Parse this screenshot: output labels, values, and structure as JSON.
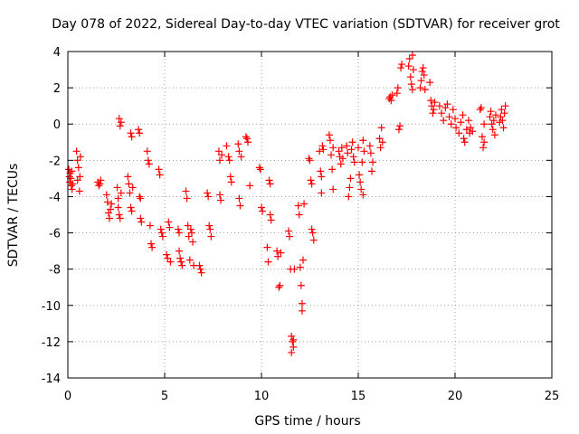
{
  "chart_data": {
    "type": "scatter",
    "title": "Day 078 of 2022, Sidereal Day-to-day VTEC variation (SDTVAR) for receiver grot",
    "xlabel": "GPS time / hours",
    "ylabel": "SDTVAR / TECUs",
    "xlim": [
      0,
      25
    ],
    "ylim": [
      -14,
      4
    ],
    "xticks": [
      0,
      5,
      10,
      15,
      20,
      25
    ],
    "yticks": [
      -14,
      -12,
      -10,
      -8,
      -6,
      -4,
      -2,
      0,
      2,
      4
    ],
    "grid": true,
    "marker": "+",
    "color": "#ff0000",
    "series": [
      {
        "name": "SDTVAR",
        "points": [
          [
            0.05,
            -2.5
          ],
          [
            0.08,
            -2.9
          ],
          [
            0.1,
            -3.2
          ],
          [
            0.12,
            -2.7
          ],
          [
            0.15,
            -3.0
          ],
          [
            0.18,
            -3.4
          ],
          [
            0.2,
            -2.6
          ],
          [
            0.22,
            -3.6
          ],
          [
            0.25,
            -3.3
          ],
          [
            0.45,
            -1.5
          ],
          [
            0.5,
            -2.0
          ],
          [
            0.5,
            -3.1
          ],
          [
            0.55,
            -2.4
          ],
          [
            0.6,
            -3.7
          ],
          [
            0.62,
            -2.9
          ],
          [
            0.65,
            -1.8
          ],
          [
            1.55,
            -3.2
          ],
          [
            1.6,
            -3.4
          ],
          [
            1.65,
            -3.3
          ],
          [
            1.7,
            -3.1
          ],
          [
            2.0,
            -3.9
          ],
          [
            2.05,
            -4.3
          ],
          [
            2.1,
            -4.9
          ],
          [
            2.15,
            -5.2
          ],
          [
            2.2,
            -4.7
          ],
          [
            2.25,
            -4.4
          ],
          [
            2.55,
            -3.5
          ],
          [
            2.6,
            -4.1
          ],
          [
            2.6,
            -4.6
          ],
          [
            2.65,
            -5.0
          ],
          [
            2.65,
            0.3
          ],
          [
            2.7,
            -0.1
          ],
          [
            2.7,
            -5.2
          ],
          [
            2.75,
            -3.8
          ],
          [
            2.75,
            0.1
          ],
          [
            3.1,
            -2.9
          ],
          [
            3.15,
            -3.3
          ],
          [
            3.2,
            -3.8
          ],
          [
            3.25,
            -4.6
          ],
          [
            3.25,
            -0.5
          ],
          [
            3.3,
            -0.7
          ],
          [
            3.3,
            -4.8
          ],
          [
            3.35,
            -3.5
          ],
          [
            3.65,
            -0.3
          ],
          [
            3.7,
            -0.5
          ],
          [
            3.7,
            -4.0
          ],
          [
            3.75,
            -4.1
          ],
          [
            3.75,
            -5.2
          ],
          [
            3.8,
            -5.4
          ],
          [
            4.1,
            -1.5
          ],
          [
            4.15,
            -2.0
          ],
          [
            4.2,
            -2.2
          ],
          [
            4.25,
            -5.6
          ],
          [
            4.3,
            -6.6
          ],
          [
            4.35,
            -6.8
          ],
          [
            4.7,
            -2.5
          ],
          [
            4.75,
            -2.8
          ],
          [
            4.8,
            -5.8
          ],
          [
            4.85,
            -6.0
          ],
          [
            4.9,
            -6.2
          ],
          [
            5.1,
            -7.2
          ],
          [
            5.15,
            -7.4
          ],
          [
            5.2,
            -5.4
          ],
          [
            5.25,
            -5.7
          ],
          [
            5.3,
            -7.6
          ],
          [
            5.7,
            -5.8
          ],
          [
            5.75,
            -6.0
          ],
          [
            5.75,
            -7.0
          ],
          [
            5.8,
            -7.4
          ],
          [
            5.85,
            -7.6
          ],
          [
            5.9,
            -7.8
          ],
          [
            6.1,
            -3.7
          ],
          [
            6.15,
            -4.1
          ],
          [
            6.2,
            -5.6
          ],
          [
            6.25,
            -6.2
          ],
          [
            6.3,
            -7.5
          ],
          [
            6.35,
            -5.8
          ],
          [
            6.4,
            -6.0
          ],
          [
            6.45,
            -6.5
          ],
          [
            6.5,
            -7.8
          ],
          [
            6.8,
            -7.8
          ],
          [
            6.85,
            -8.0
          ],
          [
            6.9,
            -8.2
          ],
          [
            7.2,
            -3.8
          ],
          [
            7.25,
            -4.0
          ],
          [
            7.3,
            -5.6
          ],
          [
            7.35,
            -5.8
          ],
          [
            7.4,
            -6.2
          ],
          [
            7.8,
            -1.5
          ],
          [
            7.85,
            -2.0
          ],
          [
            7.85,
            -3.9
          ],
          [
            7.9,
            -4.2
          ],
          [
            7.95,
            -1.7
          ],
          [
            8.2,
            -1.2
          ],
          [
            8.3,
            -1.8
          ],
          [
            8.35,
            -2.0
          ],
          [
            8.4,
            -2.9
          ],
          [
            8.45,
            -3.2
          ],
          [
            8.8,
            -1.1
          ],
          [
            8.85,
            -1.5
          ],
          [
            8.85,
            -4.1
          ],
          [
            8.9,
            -4.5
          ],
          [
            8.95,
            -1.8
          ],
          [
            9.2,
            -0.7
          ],
          [
            9.25,
            -0.8
          ],
          [
            9.3,
            -1.0
          ],
          [
            9.4,
            -3.4
          ],
          [
            9.9,
            -2.4
          ],
          [
            9.95,
            -2.5
          ],
          [
            10.0,
            -4.6
          ],
          [
            10.05,
            -4.8
          ],
          [
            10.3,
            -6.8
          ],
          [
            10.35,
            -7.6
          ],
          [
            10.4,
            -3.1
          ],
          [
            10.45,
            -3.3
          ],
          [
            10.45,
            -5.0
          ],
          [
            10.5,
            -5.3
          ],
          [
            10.8,
            -7.0
          ],
          [
            10.85,
            -7.3
          ],
          [
            10.9,
            -9.0
          ],
          [
            10.95,
            -8.9
          ],
          [
            11.0,
            -7.1
          ],
          [
            11.4,
            -5.9
          ],
          [
            11.45,
            -6.2
          ],
          [
            11.5,
            -8.0
          ],
          [
            11.55,
            -11.7
          ],
          [
            11.55,
            -12.6
          ],
          [
            11.6,
            -12.0
          ],
          [
            11.65,
            -12.3
          ],
          [
            11.65,
            -11.9
          ],
          [
            11.7,
            -8.0
          ],
          [
            11.9,
            -4.5
          ],
          [
            11.95,
            -5.0
          ],
          [
            12.0,
            -7.9
          ],
          [
            12.05,
            -8.9
          ],
          [
            12.1,
            -9.9
          ],
          [
            12.1,
            -10.3
          ],
          [
            12.15,
            -7.5
          ],
          [
            12.2,
            -4.4
          ],
          [
            12.45,
            -1.9
          ],
          [
            12.5,
            -2.0
          ],
          [
            12.55,
            -3.1
          ],
          [
            12.6,
            -3.3
          ],
          [
            12.6,
            -5.8
          ],
          [
            12.65,
            -6.0
          ],
          [
            12.7,
            -6.4
          ],
          [
            13.0,
            -1.5
          ],
          [
            13.05,
            -2.6
          ],
          [
            13.1,
            -2.9
          ],
          [
            13.1,
            -3.8
          ],
          [
            13.15,
            -1.2
          ],
          [
            13.2,
            -1.4
          ],
          [
            13.5,
            -0.6
          ],
          [
            13.55,
            -0.9
          ],
          [
            13.6,
            -1.7
          ],
          [
            13.65,
            -2.5
          ],
          [
            13.7,
            -3.6
          ],
          [
            13.7,
            -1.3
          ],
          [
            14.0,
            -1.5
          ],
          [
            14.05,
            -1.8
          ],
          [
            14.1,
            -2.2
          ],
          [
            14.15,
            -1.3
          ],
          [
            14.2,
            -1.9
          ],
          [
            14.4,
            -1.2
          ],
          [
            14.45,
            -1.6
          ],
          [
            14.5,
            -4.0
          ],
          [
            14.55,
            -3.5
          ],
          [
            14.6,
            -3.0
          ],
          [
            14.65,
            -1.4
          ],
          [
            14.7,
            -1.0
          ],
          [
            14.75,
            -1.8
          ],
          [
            14.8,
            -2.1
          ],
          [
            15.0,
            -1.3
          ],
          [
            15.05,
            -2.8
          ],
          [
            15.1,
            -3.2
          ],
          [
            15.15,
            -3.6
          ],
          [
            15.2,
            -2.1
          ],
          [
            15.25,
            -0.9
          ],
          [
            15.25,
            -3.9
          ],
          [
            15.3,
            -1.5
          ],
          [
            15.6,
            -1.2
          ],
          [
            15.65,
            -1.6
          ],
          [
            15.7,
            -2.6
          ],
          [
            15.75,
            -2.1
          ],
          [
            16.1,
            -0.8
          ],
          [
            16.15,
            -1.3
          ],
          [
            16.2,
            -0.2
          ],
          [
            16.25,
            -1.0
          ],
          [
            16.6,
            1.4
          ],
          [
            16.65,
            1.5
          ],
          [
            16.7,
            1.3
          ],
          [
            16.75,
            1.6
          ],
          [
            17.0,
            1.7
          ],
          [
            17.05,
            2.0
          ],
          [
            17.1,
            -0.3
          ],
          [
            17.15,
            -0.1
          ],
          [
            17.2,
            3.1
          ],
          [
            17.25,
            3.3
          ],
          [
            17.6,
            3.2
          ],
          [
            17.65,
            3.6
          ],
          [
            17.7,
            2.6
          ],
          [
            17.75,
            2.2
          ],
          [
            17.8,
            1.9
          ],
          [
            17.8,
            3.8
          ],
          [
            17.85,
            3.0
          ],
          [
            18.2,
            2.0
          ],
          [
            18.25,
            2.4
          ],
          [
            18.3,
            2.9
          ],
          [
            18.35,
            3.1
          ],
          [
            18.4,
            2.7
          ],
          [
            18.45,
            1.9
          ],
          [
            18.7,
            2.3
          ],
          [
            18.75,
            1.3
          ],
          [
            18.8,
            1.0
          ],
          [
            18.85,
            0.6
          ],
          [
            18.9,
            0.8
          ],
          [
            18.95,
            1.2
          ],
          [
            19.2,
            1.0
          ],
          [
            19.3,
            0.6
          ],
          [
            19.4,
            0.2
          ],
          [
            19.5,
            0.9
          ],
          [
            19.6,
            1.1
          ],
          [
            19.7,
            0.4
          ],
          [
            19.8,
            0.0
          ],
          [
            19.9,
            0.8
          ],
          [
            20.0,
            0.3
          ],
          [
            20.05,
            -0.2
          ],
          [
            20.2,
            -0.5
          ],
          [
            20.3,
            0.1
          ],
          [
            20.4,
            0.5
          ],
          [
            20.45,
            -0.8
          ],
          [
            20.5,
            -1.0
          ],
          [
            20.6,
            -0.3
          ],
          [
            20.7,
            0.2
          ],
          [
            20.75,
            -0.5
          ],
          [
            20.8,
            -0.2
          ],
          [
            20.9,
            -0.4
          ],
          [
            21.3,
            0.8
          ],
          [
            21.35,
            0.9
          ],
          [
            21.4,
            -0.7
          ],
          [
            21.45,
            -1.3
          ],
          [
            21.5,
            -1.0
          ],
          [
            21.5,
            0.0
          ],
          [
            21.8,
            0.4
          ],
          [
            21.85,
            0.7
          ],
          [
            21.9,
            0.0
          ],
          [
            21.95,
            -0.3
          ],
          [
            22.0,
            0.2
          ],
          [
            22.05,
            -0.6
          ],
          [
            22.1,
            0.5
          ],
          [
            22.3,
            0.1
          ],
          [
            22.35,
            0.4
          ],
          [
            22.4,
            0.8
          ],
          [
            22.45,
            0.2
          ],
          [
            22.5,
            -0.2
          ],
          [
            22.55,
            0.6
          ],
          [
            22.6,
            1.0
          ]
        ]
      }
    ]
  }
}
